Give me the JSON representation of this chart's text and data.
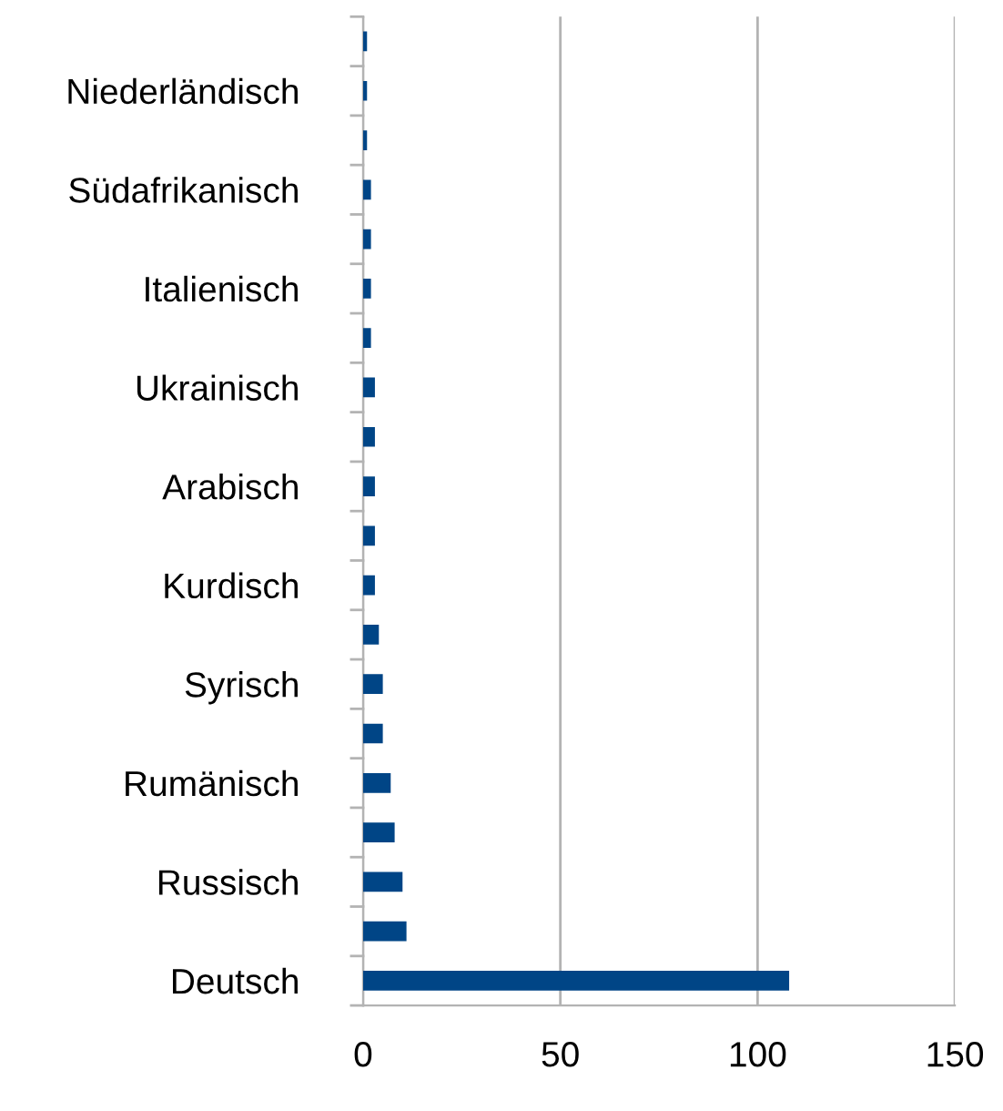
{
  "chart_data": {
    "type": "bar",
    "orientation": "horizontal",
    "categories": [
      null,
      "Niederländisch",
      null,
      "Südafrikanisch",
      null,
      "Italienisch",
      null,
      "Ukrainisch",
      null,
      "Arabisch",
      null,
      "Kurdisch",
      null,
      "Syrisch",
      null,
      "Rumänisch",
      null,
      "Russisch",
      null,
      "Deutsch"
    ],
    "values": [
      1,
      1,
      1,
      2,
      2,
      2,
      2,
      3,
      3,
      3,
      3,
      3,
      4,
      5,
      5,
      7,
      8,
      10,
      11,
      108
    ],
    "color": "#004586",
    "xlim": [
      0,
      150
    ],
    "xticks": [
      0,
      50,
      100,
      150
    ],
    "grid": "x",
    "legend": false
  }
}
